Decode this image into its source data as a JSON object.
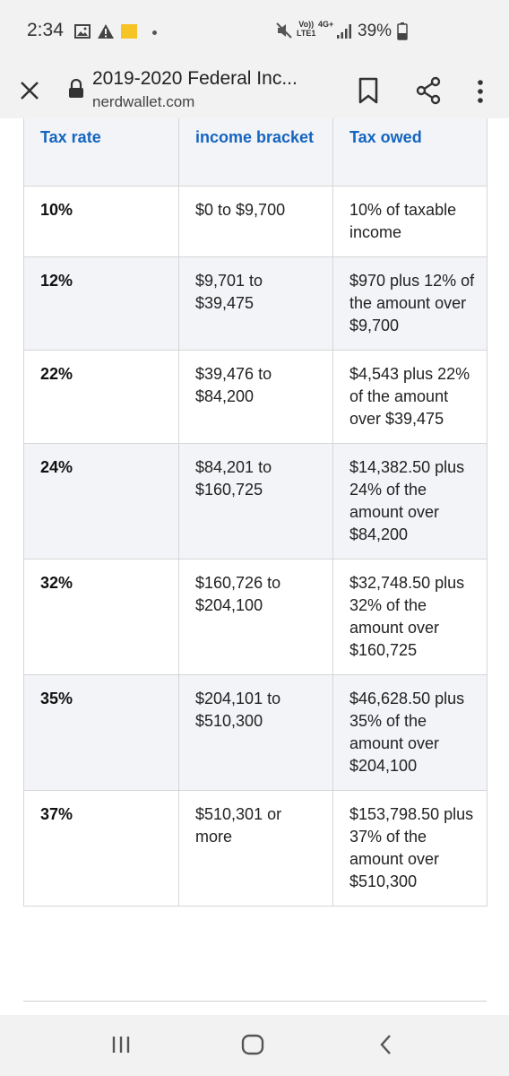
{
  "status_bar": {
    "time": "2:34",
    "network_label_top": "Vo))",
    "network_label_bottom": "LTE1",
    "network_type": "4G+",
    "battery": "39%",
    "icons": [
      "gallery-icon",
      "warning-icon",
      "nerdwallet-badge-icon",
      "dot-icon",
      "mute-icon",
      "signal-icon",
      "battery-icon"
    ]
  },
  "browser": {
    "title": "2019-2020 Federal Inc...",
    "domain": "nerdwallet.com",
    "icons": [
      "close-icon",
      "lock-icon",
      "bookmark-icon",
      "share-icon",
      "more-vert-icon"
    ]
  },
  "table": {
    "headers": [
      "Tax rate",
      "income bracket",
      "Tax owed"
    ],
    "rows": [
      {
        "rate": "10%",
        "bracket": "$0 to $9,700",
        "owed": "10% of taxable income"
      },
      {
        "rate": "12%",
        "bracket": "$9,701 to $39,475",
        "owed": "$970 plus 12% of the amount over $9,700"
      },
      {
        "rate": "22%",
        "bracket": "$39,476 to $84,200",
        "owed": "$4,543 plus 22% of the amount over $39,475"
      },
      {
        "rate": "24%",
        "bracket": "$84,201 to $160,725",
        "owed": "$14,382.50 plus 24% of the amount over $84,200"
      },
      {
        "rate": "32%",
        "bracket": "$160,726 to $204,100",
        "owed": "$32,748.50 plus 32% of the amount over $160,725"
      },
      {
        "rate": "35%",
        "bracket": "$204,101 to $510,300",
        "owed": "$46,628.50 plus 35% of the amount over $204,100"
      },
      {
        "rate": "37%",
        "bracket": "$510,301 or more",
        "owed": "$153,798.50 plus 37% of the amount over $510,300"
      }
    ]
  },
  "nav_bar": {
    "icons": [
      "recents-icon",
      "home-icon",
      "back-icon"
    ]
  },
  "colors": {
    "header_text": "#1565c0",
    "shade": "#f2f4f7",
    "chrome": "#f2f2f2"
  }
}
